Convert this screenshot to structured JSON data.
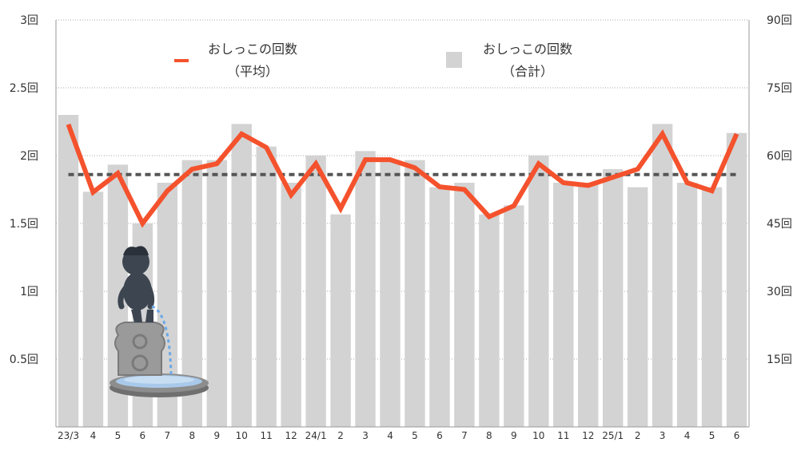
{
  "chart_data": {
    "type": "bar+line",
    "categories": [
      "23/3",
      "4",
      "5",
      "6",
      "7",
      "8",
      "9",
      "10",
      "11",
      "12",
      "24/1",
      "2",
      "3",
      "4",
      "5",
      "6",
      "7",
      "8",
      "9",
      "10",
      "11",
      "12",
      "25/1",
      "2",
      "3",
      "4",
      "5",
      "6"
    ],
    "series": [
      {
        "name": "おしっこの回数（合計）",
        "type": "bar",
        "axis": "right",
        "color": "#d3d3d3",
        "values": [
          69,
          52,
          58,
          45,
          54,
          59,
          59,
          67,
          62,
          54,
          60,
          47,
          61,
          59,
          59,
          53,
          54,
          47,
          49,
          60,
          54,
          54,
          57,
          53,
          67,
          54,
          53,
          65
        ]
      },
      {
        "name": "おしっこの回数（平均）",
        "type": "line",
        "axis": "left",
        "color": "#f4522d",
        "values": [
          2.23,
          1.73,
          1.87,
          1.5,
          1.74,
          1.9,
          1.94,
          2.16,
          2.06,
          1.71,
          1.94,
          1.61,
          1.97,
          1.97,
          1.91,
          1.77,
          1.75,
          1.55,
          1.63,
          1.94,
          1.8,
          1.78,
          1.84,
          1.9,
          2.16,
          1.8,
          1.74,
          2.16
        ]
      }
    ],
    "reference_line": {
      "axis": "left",
      "value": 1.86,
      "style": "dashed",
      "color": "#555555"
    },
    "y_left": {
      "ticks": [
        "0.5回",
        "1回",
        "1.5回",
        "2回",
        "2.5回",
        "3回"
      ],
      "tick_values": [
        0.5,
        1,
        1.5,
        2,
        2.5,
        3
      ],
      "ylim": [
        0,
        3
      ]
    },
    "y_right": {
      "ticks": [
        "15回",
        "30回",
        "45回",
        "60回",
        "75回",
        "90回"
      ],
      "tick_values": [
        15,
        30,
        45,
        60,
        75,
        90
      ],
      "ylim": [
        0,
        90
      ]
    },
    "grid": true,
    "legend": [
      {
        "label_line1": "おしっこの回数",
        "label_line2": "（平均）",
        "marker": "line",
        "color": "#f4522d"
      },
      {
        "label_line1": "おしっこの回数",
        "label_line2": "（合計）",
        "marker": "square",
        "color": "#d3d3d3"
      }
    ],
    "title": "",
    "xlabel": "",
    "ylabel": ""
  },
  "decoration": {
    "name": "manneken-pis-illustration"
  }
}
